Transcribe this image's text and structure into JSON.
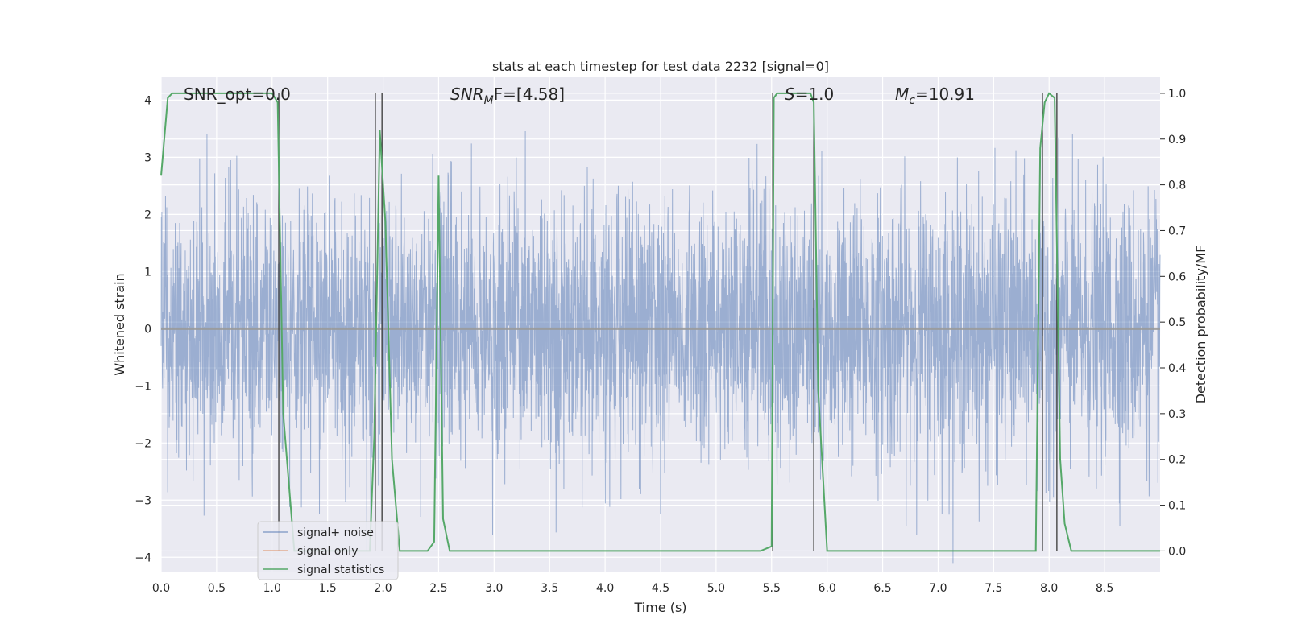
{
  "chart_data": {
    "type": "line",
    "title": "stats at each timestep for test data 2232 [signal=0]",
    "xlabel": "Time (s)",
    "ylabel": "Whitened strain",
    "y2label": "Detection probability/MF",
    "xlim": [
      0.0,
      9.0
    ],
    "ylim": [
      -4.25,
      4.4
    ],
    "y2lim": [
      -0.045,
      1.035
    ],
    "x_ticks": [
      0.0,
      0.5,
      1.0,
      1.5,
      2.0,
      2.5,
      3.0,
      3.5,
      4.0,
      4.5,
      5.0,
      5.5,
      6.0,
      6.5,
      7.0,
      7.5,
      8.0,
      8.5
    ],
    "x_tick_labels": [
      "0.0",
      "0.5",
      "1.0",
      "1.5",
      "2.0",
      "2.5",
      "3.0",
      "3.5",
      "4.0",
      "4.5",
      "5.0",
      "5.5",
      "6.0",
      "6.5",
      "7.0",
      "7.5",
      "8.0",
      "8.5"
    ],
    "y_ticks": [
      4,
      3,
      2,
      1,
      0,
      -1,
      -2,
      -3,
      -4
    ],
    "y_tick_labels": [
      "4",
      "3",
      "2",
      "1",
      "0",
      "−1",
      "−2",
      "−3",
      "−4"
    ],
    "y2_ticks": [
      1.0,
      0.9,
      0.8,
      0.7,
      0.6,
      0.5,
      0.4,
      0.3,
      0.2,
      0.1,
      0.0
    ],
    "y2_tick_labels": [
      "1.0",
      "0.9",
      "0.8",
      "0.7",
      "0.6",
      "0.5",
      "0.4",
      "0.3",
      "0.2",
      "0.1",
      "0.0"
    ],
    "grid": true,
    "legend_position": "lower-left",
    "annotations": {
      "snr_opt": "SNR_opt=0.0",
      "snr_mf_main": "SNR",
      "snr_mf_sub": "M",
      "snr_mf_rest": "F=[4.58]",
      "s_main": "S",
      "s_rest": "=1.0",
      "mc_main": "M",
      "mc_sub": "c",
      "mc_rest": "=10.91"
    },
    "series": [
      {
        "name": "signal+ noise",
        "color": "#4c72b0",
        "axis": "left",
        "description_values": "noise band roughly -4 to 4"
      },
      {
        "name": "signal only",
        "color": "#dd8452",
        "axis": "left",
        "values": []
      },
      {
        "name": "signal statistics",
        "color": "#55a868",
        "axis": "right",
        "x": [
          0.0,
          0.06,
          0.1,
          0.2,
          0.5,
          0.8,
          1.0,
          1.05,
          1.1,
          1.2,
          1.4,
          1.6,
          1.8,
          1.88,
          1.92,
          1.97,
          2.02,
          2.08,
          2.15,
          2.3,
          2.4,
          2.46,
          2.5,
          2.54,
          2.6,
          2.8,
          3.2,
          4.0,
          4.8,
          5.4,
          5.5,
          5.52,
          5.55,
          5.6,
          5.7,
          5.85,
          5.88,
          5.92,
          6.0,
          6.3,
          7.0,
          7.7,
          7.88,
          7.92,
          7.96,
          8.0,
          8.05,
          8.1,
          8.14,
          8.2,
          8.3,
          8.6,
          9.0
        ],
        "y": [
          0.82,
          0.99,
          1.0,
          1.0,
          1.0,
          1.0,
          1.0,
          0.98,
          0.3,
          0.0,
          0.0,
          0.0,
          0.0,
          0.0,
          0.25,
          0.92,
          0.72,
          0.2,
          0.0,
          0.0,
          0.0,
          0.02,
          0.82,
          0.07,
          0.0,
          0.0,
          0.0,
          0.0,
          0.0,
          0.0,
          0.01,
          0.99,
          1.0,
          1.0,
          1.0,
          1.0,
          0.98,
          0.35,
          0.0,
          0.0,
          0.0,
          0.0,
          0.0,
          0.88,
          0.98,
          1.0,
          0.99,
          0.2,
          0.06,
          0.0,
          0.0,
          0.0,
          0.0
        ]
      }
    ],
    "vertical_lines_x": [
      1.06,
      1.93,
      1.99,
      5.51,
      5.88,
      7.94,
      8.07
    ]
  }
}
